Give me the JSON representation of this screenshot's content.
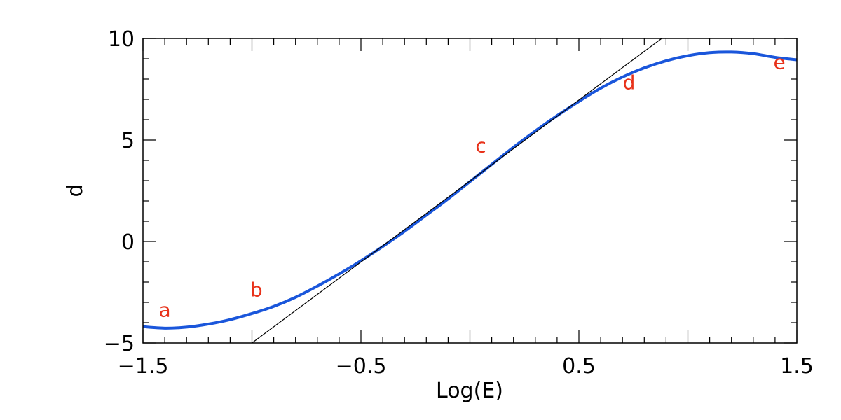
{
  "chart_data": {
    "type": "line",
    "title": "",
    "xlabel": "Log(E)",
    "ylabel": "d",
    "xlim": [
      -1.5,
      1.5
    ],
    "ylim": [
      -5,
      10
    ],
    "grid": false,
    "x_tick_labels": [
      {
        "value": -1.5,
        "label": "−1.5"
      },
      {
        "value": -0.5,
        "label": "−0.5"
      },
      {
        "value": 0.5,
        "label": "0.5"
      },
      {
        "value": 1.5,
        "label": "1.5"
      }
    ],
    "y_tick_labels": [
      {
        "value": -5,
        "label": "−5"
      },
      {
        "value": 0,
        "label": "0"
      },
      {
        "value": 5,
        "label": "5"
      },
      {
        "value": 10,
        "label": "10"
      }
    ],
    "series": [
      {
        "color": "#1a56db",
        "style": "thick",
        "x": [
          -1.5,
          -1.4,
          -1.3,
          -1.2,
          -1.1,
          -1.0,
          -0.9,
          -0.8,
          -0.7,
          -0.6,
          -0.5,
          -0.4,
          -0.3,
          -0.2,
          -0.1,
          0.0,
          0.1,
          0.2,
          0.3,
          0.4,
          0.5,
          0.6,
          0.7,
          0.8,
          0.9,
          1.0,
          1.1,
          1.2,
          1.3,
          1.4,
          1.5
        ],
        "y": [
          -4.2,
          -4.27,
          -4.22,
          -4.07,
          -3.85,
          -3.55,
          -3.2,
          -2.75,
          -2.2,
          -1.6,
          -0.95,
          -0.25,
          0.5,
          1.3,
          2.1,
          2.95,
          3.8,
          4.65,
          5.45,
          6.2,
          6.9,
          7.55,
          8.1,
          8.55,
          8.9,
          9.15,
          9.3,
          9.33,
          9.25,
          9.07,
          8.95
        ]
      },
      {
        "color": "#000000",
        "style": "thin",
        "x": [
          -1.0,
          0.88
        ],
        "y": [
          -5.0,
          10.0
        ]
      }
    ],
    "annotations": [
      {
        "text": "a",
        "x": -1.4,
        "y": -3.7,
        "color": "#e8321a"
      },
      {
        "text": "b",
        "x": -0.98,
        "y": -2.7,
        "color": "#e8321a"
      },
      {
        "text": "c",
        "x": 0.05,
        "y": 4.4,
        "color": "#e8321a"
      },
      {
        "text": "d",
        "x": 0.73,
        "y": 7.5,
        "color": "#e8321a"
      },
      {
        "text": "e",
        "x": 1.42,
        "y": 8.5,
        "color": "#e8321a"
      }
    ],
    "x_minor_step": 0.1,
    "y_minor_step": 1
  }
}
